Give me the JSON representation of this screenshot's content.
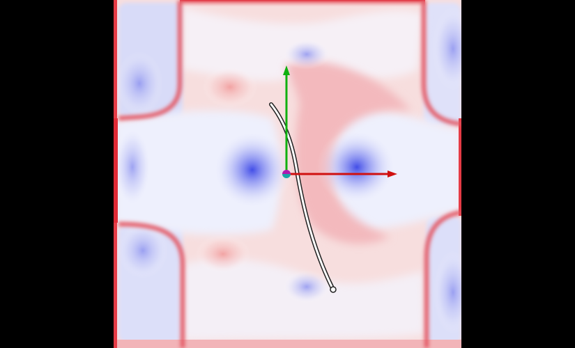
{
  "viewer": {
    "background_color": "#000000",
    "field": {
      "colormap": "blue-white-red",
      "negative_color": "#3a46e6",
      "neutral_color": "#ffffff",
      "positive_color": "#e63a46"
    },
    "axes": {
      "x_color": "#d01010",
      "y_color": "#10b010",
      "origin_colors": [
        "#1aa6a6",
        "#b01ab0"
      ]
    },
    "curve": {
      "stroke_color": "#222222",
      "fill_color": "#ffffff",
      "endpoint_icon": "circle-handle-icon"
    }
  }
}
